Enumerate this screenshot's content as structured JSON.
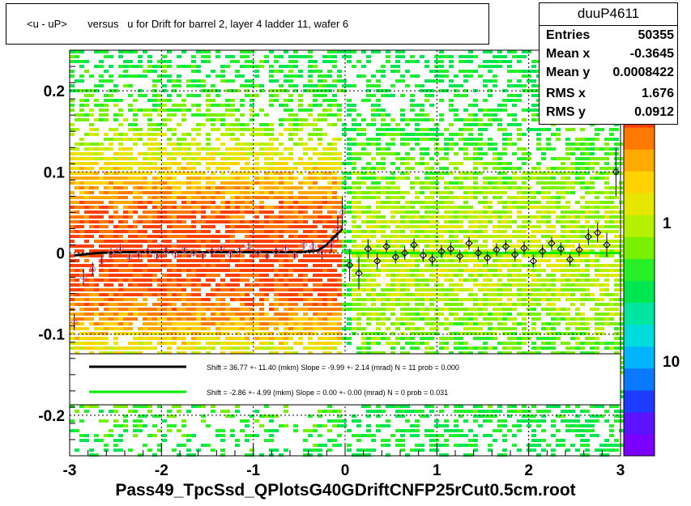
{
  "title": "<u - uP>       versus   u for Drift for barrel 2, layer 4 ladder 11, wafer 6",
  "footer": "Pass49_TpcSsd_QPlotsG40GDriftCNFP25rCut0.5cm.root",
  "stats": {
    "name": "duuP4611",
    "rows": [
      {
        "label": "Entries",
        "value": "50355"
      },
      {
        "label": "Mean x",
        "value": "-0.3645"
      },
      {
        "label": "Mean y",
        "value": "0.0008422"
      },
      {
        "label": "RMS x",
        "value": "1.676"
      },
      {
        "label": "RMS y",
        "value": "0.0912"
      }
    ]
  },
  "chart_data": {
    "type": "heatmap",
    "xlim": [
      -3,
      3
    ],
    "ylim": [
      -0.25,
      0.25
    ],
    "x_ticks": [
      "-3",
      "-2",
      "-1",
      "0",
      "1",
      "2",
      "3"
    ],
    "y_ticks": [
      "-0.2",
      "-0.1",
      "0",
      "0.1",
      "0.2"
    ],
    "color_scale": {
      "type": "log",
      "tick_labels": [
        "1",
        "10"
      ],
      "colors": [
        "#7a00ff",
        "#5a14ff",
        "#1e3cff",
        "#0a78ff",
        "#00b4ff",
        "#00dcdc",
        "#00e6a0",
        "#00e650",
        "#28f028",
        "#78f000",
        "#b4f000",
        "#e6e600",
        "#ffd200",
        "#ffaa00",
        "#ff7800",
        "#ff4000"
      ]
    },
    "grid": true,
    "legend": [
      {
        "color": "#000000",
        "text": "Shift =    36.77 +- 11.40 (mkm) Slope =    -9.99 +- 2.14 (mrad)  N = 11 prob = 0.000"
      },
      {
        "color": "#00ee00",
        "text": "Shift =    -2.86 +- 4.99 (mkm) Slope =     0.00 +- 0.00 (mrad)  N = 0 prob = 0.031"
      }
    ],
    "fit_black": {
      "x": [
        -2.95,
        -2.7,
        -2.4,
        -2.0,
        -1.5,
        -1.0,
        -0.5,
        -0.3,
        -0.2,
        -0.1,
        -0.03
      ],
      "y": [
        -0.003,
        0.0,
        0.001,
        0.001,
        0.001,
        0.001,
        0.001,
        0.003,
        0.01,
        0.022,
        0.03
      ]
    },
    "fit_green": {
      "x": [
        0.0,
        3.0
      ],
      "y": [
        0.0,
        0.0
      ]
    },
    "profile_points": {
      "x": [
        -2.95,
        -2.85,
        -2.75,
        -2.65,
        -2.55,
        -2.45,
        -2.35,
        -2.25,
        -2.15,
        -2.05,
        -1.95,
        -1.85,
        -1.75,
        -1.65,
        -1.55,
        -1.45,
        -1.35,
        -1.25,
        -1.15,
        -1.05,
        -0.95,
        -0.85,
        -0.75,
        -0.65,
        -0.55,
        -0.45,
        -0.35,
        -0.25,
        -0.15,
        -0.08,
        -0.03,
        0.05,
        0.15,
        0.25,
        0.35,
        0.45,
        0.55,
        0.65,
        0.75,
        0.85,
        0.95,
        1.05,
        1.15,
        1.25,
        1.35,
        1.45,
        1.55,
        1.65,
        1.75,
        1.85,
        1.95,
        2.05,
        2.15,
        2.25,
        2.35,
        2.45,
        2.55,
        2.65,
        2.75,
        2.85,
        2.95
      ],
      "y": [
        -0.085,
        -0.03,
        -0.02,
        -0.01,
        0.0,
        0.005,
        -0.005,
        -0.002,
        0.002,
        -0.004,
        0.003,
        -0.002,
        0.004,
        0.0,
        -0.003,
        0.002,
        0.006,
        -0.002,
        0.003,
        0.008,
        0.0,
        -0.004,
        0.002,
        0.005,
        -0.003,
        0.01,
        0.008,
        0.0,
        0.01,
        0.03,
        0.05,
        -0.015,
        -0.025,
        0.005,
        -0.01,
        0.008,
        -0.005,
        0.0,
        0.01,
        -0.003,
        -0.008,
        0.002,
        0.005,
        -0.004,
        0.012,
        0.0,
        -0.006,
        0.004,
        0.008,
        -0.002,
        0.006,
        -0.01,
        0.002,
        0.012,
        0.005,
        -0.008,
        0.004,
        0.02,
        0.025,
        0.01,
        0.1
      ],
      "err": [
        0.01,
        0.01,
        0.008,
        0.006,
        0.006,
        0.006,
        0.005,
        0.005,
        0.005,
        0.005,
        0.005,
        0.005,
        0.005,
        0.005,
        0.005,
        0.005,
        0.005,
        0.005,
        0.005,
        0.005,
        0.005,
        0.005,
        0.005,
        0.005,
        0.005,
        0.006,
        0.006,
        0.008,
        0.01,
        0.015,
        0.02,
        0.02,
        0.02,
        0.012,
        0.01,
        0.008,
        0.008,
        0.008,
        0.008,
        0.008,
        0.008,
        0.008,
        0.008,
        0.008,
        0.008,
        0.008,
        0.008,
        0.008,
        0.008,
        0.008,
        0.008,
        0.008,
        0.008,
        0.008,
        0.008,
        0.008,
        0.008,
        0.01,
        0.012,
        0.015,
        0.03
      ]
    }
  }
}
